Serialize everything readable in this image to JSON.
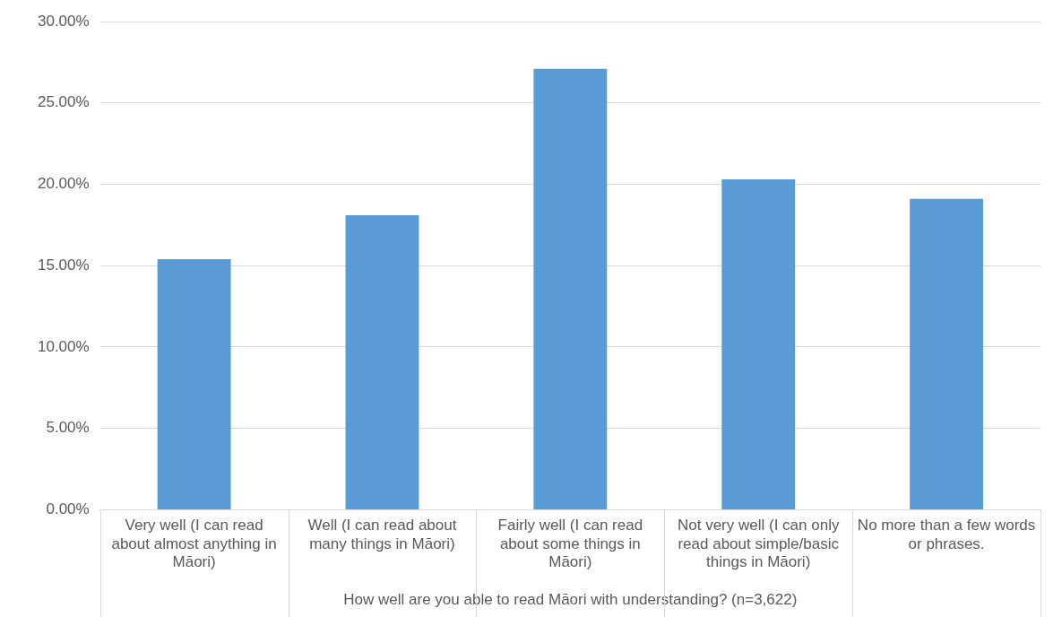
{
  "chart_data": {
    "type": "bar",
    "xlabel": "How well are you able to read Māori with understanding? (n=3,622)",
    "categories": [
      "Very well (I can read about almost anything in Māori)",
      "Well (I can read about many things in Māori)",
      "Fairly well (I can read about some things in Māori)",
      "Not very well (I can only read about simple/basic things in Māori)",
      "No more than a few words or phrases."
    ],
    "values": [
      15.4,
      18.1,
      27.1,
      20.3,
      19.1
    ],
    "color": "#5b9bd5",
    "ylim": [
      0,
      30
    ],
    "yticks": [
      {
        "value": 0,
        "label": "0.00%"
      },
      {
        "value": 5,
        "label": "5.00%"
      },
      {
        "value": 10,
        "label": "10.00%"
      },
      {
        "value": 15,
        "label": "15.00%"
      },
      {
        "value": 20,
        "label": "20.00%"
      },
      {
        "value": 25,
        "label": "25.00%"
      },
      {
        "value": 30,
        "label": "30.00%"
      }
    ],
    "grid": "y",
    "legend": false
  }
}
